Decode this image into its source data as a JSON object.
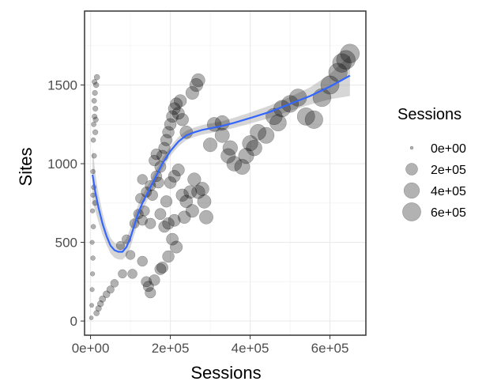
{
  "chart_data": {
    "type": "scatter",
    "title": "",
    "xlabel": "Sessions",
    "ylabel": "Sites",
    "xlim": [
      -15000,
      690000
    ],
    "ylim": [
      -90,
      1970
    ],
    "x_ticks": [
      0,
      200000,
      400000,
      600000
    ],
    "x_tick_labels": [
      "0e+00",
      "2e+05",
      "4e+05",
      "6e+05"
    ],
    "y_ticks": [
      0,
      500,
      1000,
      1500
    ],
    "y_tick_labels": [
      "0",
      "500",
      "1000",
      "1500"
    ],
    "grid": true,
    "point_color": "#000000",
    "point_opacity": 0.3,
    "smooth_color": "#3366ff",
    "ribbon_color": "#999999",
    "legend": {
      "title": "Sessions",
      "position": "right",
      "values": [
        0,
        200000,
        400000,
        600000
      ],
      "labels": [
        "0e+00",
        "2e+05",
        "4e+05",
        "6e+05"
      ]
    },
    "points": [
      [
        2000,
        20
      ],
      [
        3000,
        100
      ],
      [
        4000,
        200
      ],
      [
        5000,
        300
      ],
      [
        6000,
        400
      ],
      [
        4000,
        500
      ],
      [
        7000,
        600
      ],
      [
        5000,
        700
      ],
      [
        8000,
        850
      ],
      [
        6000,
        950
      ],
      [
        9000,
        1050
      ],
      [
        7000,
        1150
      ],
      [
        8000,
        1250
      ],
      [
        10000,
        1300
      ],
      [
        12000,
        1350
      ],
      [
        9000,
        1400
      ],
      [
        11000,
        1450
      ],
      [
        14000,
        1500
      ],
      [
        16000,
        1550
      ],
      [
        10000,
        1520
      ],
      [
        13000,
        1280
      ],
      [
        12000,
        1200
      ],
      [
        6000,
        800
      ],
      [
        11000,
        750
      ],
      [
        15000,
        50
      ],
      [
        20000,
        80
      ],
      [
        25000,
        110
      ],
      [
        30000,
        140
      ],
      [
        40000,
        170
      ],
      [
        50000,
        200
      ],
      [
        60000,
        240
      ],
      [
        80000,
        300
      ],
      [
        100000,
        420
      ],
      [
        75000,
        480
      ],
      [
        90000,
        520
      ],
      [
        110000,
        620
      ],
      [
        120000,
        680
      ],
      [
        105000,
        300
      ],
      [
        130000,
        380
      ],
      [
        140000,
        250
      ],
      [
        125000,
        780
      ],
      [
        135000,
        700
      ],
      [
        150000,
        620
      ],
      [
        155000,
        800
      ],
      [
        165000,
        920
      ],
      [
        150000,
        860
      ],
      [
        175000,
        980
      ],
      [
        180000,
        1050
      ],
      [
        185000,
        1100
      ],
      [
        190000,
        1150
      ],
      [
        195000,
        1200
      ],
      [
        200000,
        1250
      ],
      [
        205000,
        1300
      ],
      [
        210000,
        1350
      ],
      [
        215000,
        1380
      ],
      [
        220000,
        1320
      ],
      [
        225000,
        1400
      ],
      [
        230000,
        1280
      ],
      [
        240000,
        1200
      ],
      [
        255000,
        1450
      ],
      [
        265000,
        1500
      ],
      [
        270000,
        1530
      ],
      [
        175000,
        680
      ],
      [
        190000,
        760
      ],
      [
        200000,
        880
      ],
      [
        210000,
        920
      ],
      [
        220000,
        960
      ],
      [
        230000,
        800
      ],
      [
        240000,
        760
      ],
      [
        250000,
        820
      ],
      [
        260000,
        900
      ],
      [
        270000,
        820
      ],
      [
        185000,
        600
      ],
      [
        195000,
        620
      ],
      [
        205000,
        520
      ],
      [
        210000,
        640
      ],
      [
        235000,
        660
      ],
      [
        255000,
        700
      ],
      [
        290000,
        660
      ],
      [
        285000,
        760
      ],
      [
        280000,
        840
      ],
      [
        300000,
        1120
      ],
      [
        310000,
        1250
      ],
      [
        330000,
        1180
      ],
      [
        350000,
        1100
      ],
      [
        360000,
        1000
      ],
      [
        380000,
        980
      ],
      [
        390000,
        1050
      ],
      [
        410000,
        1100
      ],
      [
        420000,
        1200
      ],
      [
        440000,
        1180
      ],
      [
        460000,
        1300
      ],
      [
        480000,
        1350
      ],
      [
        500000,
        1380
      ],
      [
        520000,
        1420
      ],
      [
        540000,
        1300
      ],
      [
        560000,
        1280
      ],
      [
        580000,
        1420
      ],
      [
        600000,
        1500
      ],
      [
        620000,
        1580
      ],
      [
        630000,
        1640
      ],
      [
        640000,
        1660
      ],
      [
        650000,
        1700
      ],
      [
        330000,
        1260
      ],
      [
        160000,
        260
      ],
      [
        175000,
        330
      ],
      [
        215000,
        470
      ],
      [
        180000,
        340
      ],
      [
        195000,
        410
      ],
      [
        150000,
        180
      ],
      [
        145000,
        220
      ],
      [
        170000,
        880
      ],
      [
        130000,
        900
      ],
      [
        140000,
        820
      ],
      [
        130000,
        640
      ],
      [
        160000,
        1020
      ],
      [
        165000,
        1060
      ],
      [
        345000,
        1050
      ],
      [
        400000,
        1130
      ],
      [
        470000,
        1260
      ]
    ],
    "smooth_line": [
      [
        5000,
        930
      ],
      [
        12000,
        820
      ],
      [
        20000,
        720
      ],
      [
        30000,
        620
      ],
      [
        40000,
        540
      ],
      [
        50000,
        480
      ],
      [
        60000,
        450
      ],
      [
        70000,
        440
      ],
      [
        80000,
        440
      ],
      [
        90000,
        470
      ],
      [
        100000,
        530
      ],
      [
        110000,
        610
      ],
      [
        120000,
        690
      ],
      [
        130000,
        750
      ],
      [
        140000,
        800
      ],
      [
        150000,
        850
      ],
      [
        160000,
        900
      ],
      [
        170000,
        950
      ],
      [
        180000,
        1000
      ],
      [
        190000,
        1040
      ],
      [
        200000,
        1080
      ],
      [
        210000,
        1110
      ],
      [
        220000,
        1140
      ],
      [
        230000,
        1160
      ],
      [
        240000,
        1180
      ],
      [
        260000,
        1200
      ],
      [
        280000,
        1215
      ],
      [
        300000,
        1225
      ],
      [
        330000,
        1240
      ],
      [
        360000,
        1260
      ],
      [
        400000,
        1290
      ],
      [
        450000,
        1330
      ],
      [
        500000,
        1380
      ],
      [
        550000,
        1430
      ],
      [
        600000,
        1490
      ],
      [
        650000,
        1560
      ]
    ],
    "ribbon_half_width": [
      170,
      120,
      90,
      70,
      55,
      50,
      48,
      48,
      50,
      55,
      60,
      60,
      55,
      50,
      45,
      40,
      38,
      36,
      34,
      32,
      30,
      30,
      30,
      30,
      30,
      30,
      30,
      30,
      30,
      32,
      35,
      40,
      45,
      55,
      80,
      130
    ]
  }
}
